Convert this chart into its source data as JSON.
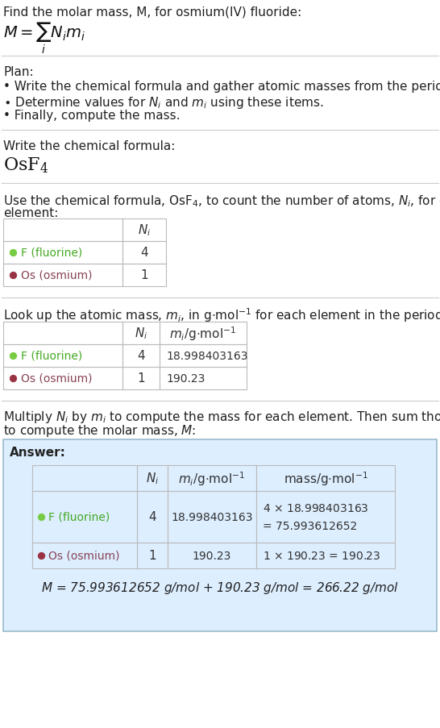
{
  "bg_color": "#ffffff",
  "f_dot_color": "#77cc44",
  "os_dot_color": "#993344",
  "f_text_color": "#44aa22",
  "os_text_color": "#884455",
  "text_color": "#222222",
  "line_color": "#cccccc",
  "answer_bg": "#ddeeff",
  "answer_border": "#99bbcc",
  "title_line1": "Find the molar mass, M, for osmium(IV) fluoride:",
  "plan_header": "Plan:",
  "bullet1": "• Write the chemical formula and gather atomic masses from the periodic table.",
  "bullet3": "• Finally, compute the mass.",
  "formula_label": "Write the chemical formula:",
  "answer_label": "Answer:",
  "final_eq": "M = 75.993612652 g/mol + 190.23 g/mol = 266.22 g/mol"
}
